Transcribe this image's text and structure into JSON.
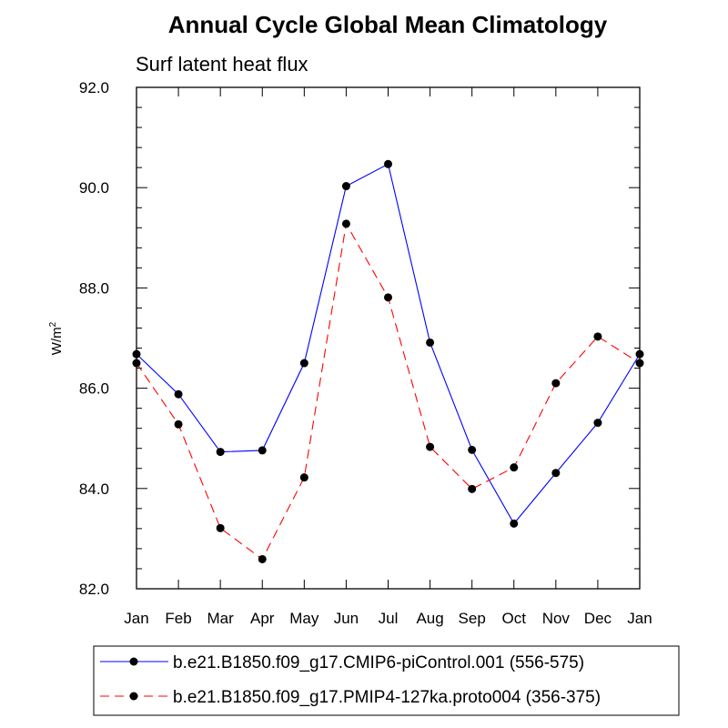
{
  "chart_data": {
    "type": "line",
    "title": "Annual Cycle Global Mean Climatology",
    "subtitle": "Surf latent heat flux",
    "xlabel": "",
    "ylabel": "W/m",
    "ylabel_superscript": "2",
    "categories": [
      "Jan",
      "Feb",
      "Mar",
      "Apr",
      "May",
      "Jun",
      "Jul",
      "Aug",
      "Sep",
      "Oct",
      "Nov",
      "Dec",
      "Jan"
    ],
    "ylim": [
      82.0,
      92.0
    ],
    "yticks": [
      82.0,
      84.0,
      86.0,
      88.0,
      90.0,
      92.0
    ],
    "ytick_labels": [
      "82.0",
      "84.0",
      "86.0",
      "88.0",
      "90.0",
      "92.0"
    ],
    "grid": false,
    "legend_position": "bottom",
    "series": [
      {
        "name": "b.e21.B1850.f09_g17.CMIP6-piControl.001 (556-575)",
        "color": "#0000ff",
        "line_style": "solid",
        "marker": "filled-circle",
        "values": [
          86.68,
          85.88,
          84.73,
          84.76,
          86.5,
          90.03,
          90.47,
          86.91,
          84.77,
          83.3,
          84.31,
          85.31,
          86.68
        ]
      },
      {
        "name": "b.e21.B1850.f09_g17.PMIP4-127ka.proto004 (356-375)",
        "color": "#ff0000",
        "line_style": "dashed",
        "marker": "filled-circle",
        "values": [
          86.5,
          85.28,
          83.21,
          82.59,
          84.22,
          89.28,
          87.81,
          84.83,
          83.99,
          84.42,
          86.1,
          87.03,
          86.5
        ]
      }
    ]
  }
}
